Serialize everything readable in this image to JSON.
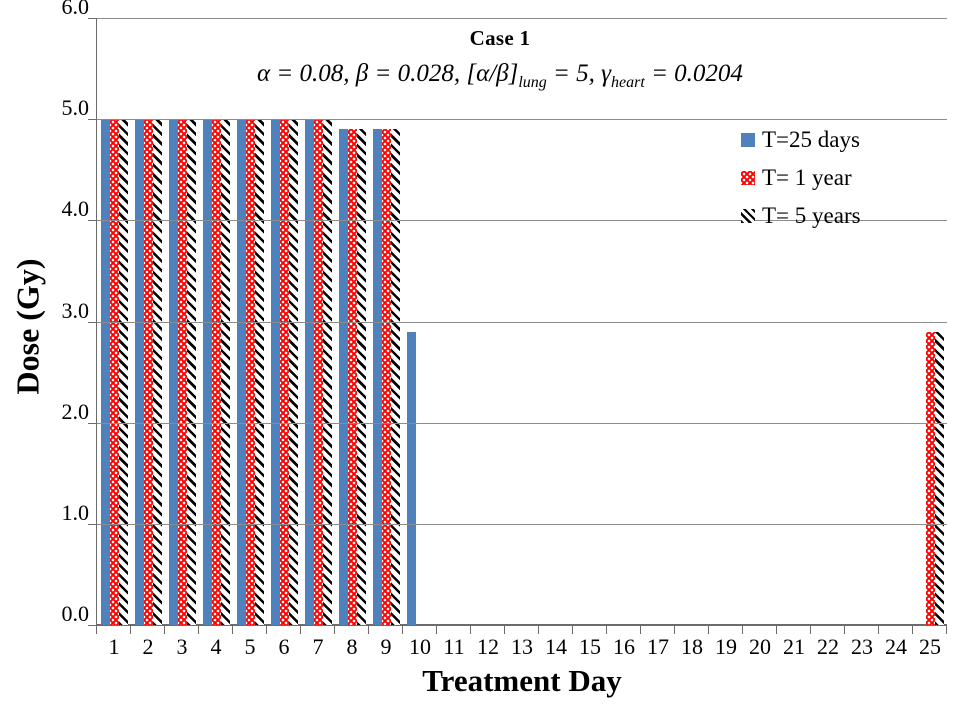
{
  "chart_data": {
    "type": "bar",
    "title": "Case 1",
    "formula": {
      "p1": "α = 0.08, β = 0.028, [α/β]",
      "sub1": "lung",
      "p2": " = 5, γ",
      "sub2": "heart",
      "p3": " = 0.0204"
    },
    "xlabel": "Treatment Day",
    "ylabel": "Dose (Gy)",
    "ylim": [
      0,
      6
    ],
    "y_ticks": [
      "0.0",
      "1.0",
      "2.0",
      "3.0",
      "4.0",
      "5.0",
      "6.0"
    ],
    "grid": "horizontal",
    "legend_position": "top-right",
    "categories": [
      "1",
      "2",
      "3",
      "4",
      "5",
      "6",
      "7",
      "8",
      "9",
      "10",
      "11",
      "12",
      "13",
      "14",
      "15",
      "16",
      "17",
      "18",
      "19",
      "20",
      "21",
      "22",
      "23",
      "24",
      "25"
    ],
    "series": [
      {
        "name": "T=25 days",
        "color": "#4f81bd",
        "pattern": "solid",
        "values": [
          5.0,
          5.0,
          5.0,
          5.0,
          5.0,
          5.0,
          5.0,
          4.9,
          4.9,
          2.9,
          0,
          0,
          0,
          0,
          0,
          0,
          0,
          0,
          0,
          0,
          0,
          0,
          0,
          0,
          0
        ]
      },
      {
        "name": "T= 1 year",
        "color": "#fe0000",
        "pattern": "dots",
        "values": [
          5.0,
          5.0,
          5.0,
          5.0,
          5.0,
          5.0,
          5.0,
          4.9,
          4.9,
          0,
          0,
          0,
          0,
          0,
          0,
          0,
          0,
          0,
          0,
          0,
          0,
          0,
          0,
          0,
          2.9
        ]
      },
      {
        "name": "T= 5 years",
        "color": "#000000",
        "pattern": "hatch",
        "values": [
          5.0,
          5.0,
          5.0,
          5.0,
          5.0,
          5.0,
          5.0,
          4.9,
          4.9,
          0,
          0,
          0,
          0,
          0,
          0,
          0,
          0,
          0,
          0,
          0,
          0,
          0,
          0,
          0,
          2.9
        ]
      }
    ],
    "colors": {
      "axis": "#6b6b6b",
      "gridline": "#8c8c8c",
      "background": "#ffffff"
    }
  }
}
